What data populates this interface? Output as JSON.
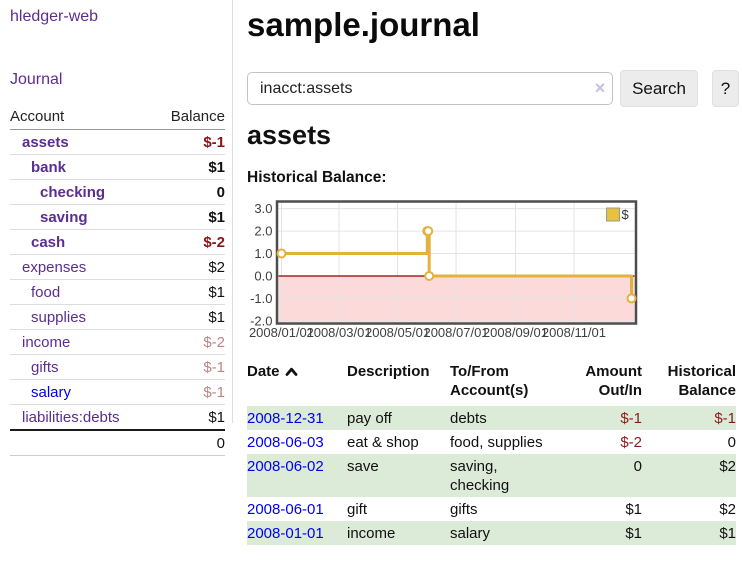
{
  "sidebar": {
    "app_title": "hledger-web",
    "journal_link": "Journal",
    "accounts_header": {
      "account": "Account",
      "balance": "Balance"
    },
    "accounts": [
      {
        "label": "assets",
        "level": 1,
        "bold": true,
        "balance": "$-1"
      },
      {
        "label": "bank",
        "level": 2,
        "bold": true,
        "balance": "$1"
      },
      {
        "label": "checking",
        "level": 3,
        "bold": true,
        "balance": "0"
      },
      {
        "label": "saving",
        "level": 3,
        "bold": true,
        "balance": "$1"
      },
      {
        "label": "cash",
        "level": 2,
        "bold": true,
        "balance": "$-2"
      },
      {
        "label": "expenses",
        "level": 1,
        "bold": false,
        "balance": "$2"
      },
      {
        "label": "food",
        "level": 2,
        "bold": false,
        "balance": "$1"
      },
      {
        "label": "supplies",
        "level": 2,
        "bold": false,
        "balance": "$1"
      },
      {
        "label": "income",
        "level": 1,
        "bold": false,
        "balance": "$-2"
      },
      {
        "label": "gifts",
        "level": 2,
        "bold": false,
        "balance": "$-1"
      },
      {
        "label": "salary",
        "level": 2,
        "bold": false,
        "balance": "$-1",
        "unvisited": true
      },
      {
        "label": "liabilities:debts",
        "level": 1,
        "bold": false,
        "balance": "$1"
      }
    ],
    "total": "0"
  },
  "main": {
    "title": "sample.journal",
    "search": {
      "value": "inacct:assets",
      "clear_icon": "×",
      "button_label": "Search",
      "help_label": "?"
    },
    "account_heading": "assets"
  },
  "chart_data": {
    "type": "line",
    "title": "Historical Balance:",
    "step": true,
    "series": [
      {
        "name": "$",
        "points": [
          [
            "2008-01-01",
            1
          ],
          [
            "2008-06-01",
            2
          ],
          [
            "2008-06-02",
            2
          ],
          [
            "2008-06-03",
            0
          ],
          [
            "2008-12-31",
            -1
          ]
        ]
      }
    ],
    "x_start": "2008-01-01",
    "x_end": "2008-12-31",
    "x_tick_labels": [
      "2008/01/01",
      "2008/03/01",
      "2008/05/01",
      "2008/07/01",
      "2008/09/01",
      "2008/11/01"
    ],
    "y_ticks": [
      3.0,
      2.0,
      1.0,
      0.0,
      -1.0,
      -2.0
    ],
    "ylim": [
      -2.05,
      3.25
    ],
    "grid": true,
    "legend_position": "top-right",
    "colors": {
      "line": "#e2b33c",
      "marker_fill": "#ffffff",
      "legend_swatch": "#e8c13d",
      "negative_region": "#fcdada",
      "zero_line": "#8b0000",
      "grid": "#e3e3e3",
      "border": "#4d4d4d",
      "tick_text": "#3f3f3f"
    }
  },
  "register": {
    "columns": [
      "Date",
      "Description",
      "To/From Account(s)",
      "Amount Out/In",
      "Historical Balance"
    ],
    "rows": [
      {
        "date": "2008-12-31",
        "description": "pay off",
        "accounts": "debts",
        "amount": "$-1",
        "balance": "$-1"
      },
      {
        "date": "2008-06-03",
        "description": "eat & shop",
        "accounts": "food, supplies",
        "amount": "$-2",
        "balance": "0"
      },
      {
        "date": "2008-06-02",
        "description": "save",
        "accounts": "saving, checking",
        "amount": "0",
        "balance": "$2"
      },
      {
        "date": "2008-06-01",
        "description": "gift",
        "accounts": "gifts",
        "amount": "$1",
        "balance": "$2"
      },
      {
        "date": "2008-01-01",
        "description": "income",
        "accounts": "salary",
        "amount": "$1",
        "balance": "$1"
      }
    ]
  },
  "colors": {
    "link_purple": "#5b2d91",
    "link_blue": "#0000ee",
    "negative_strong": "#8b1414",
    "negative_soft": "#bb8585",
    "register_negative": "#8b1a1a",
    "row_green": "#dcead8",
    "button_bg": "#ececec"
  }
}
